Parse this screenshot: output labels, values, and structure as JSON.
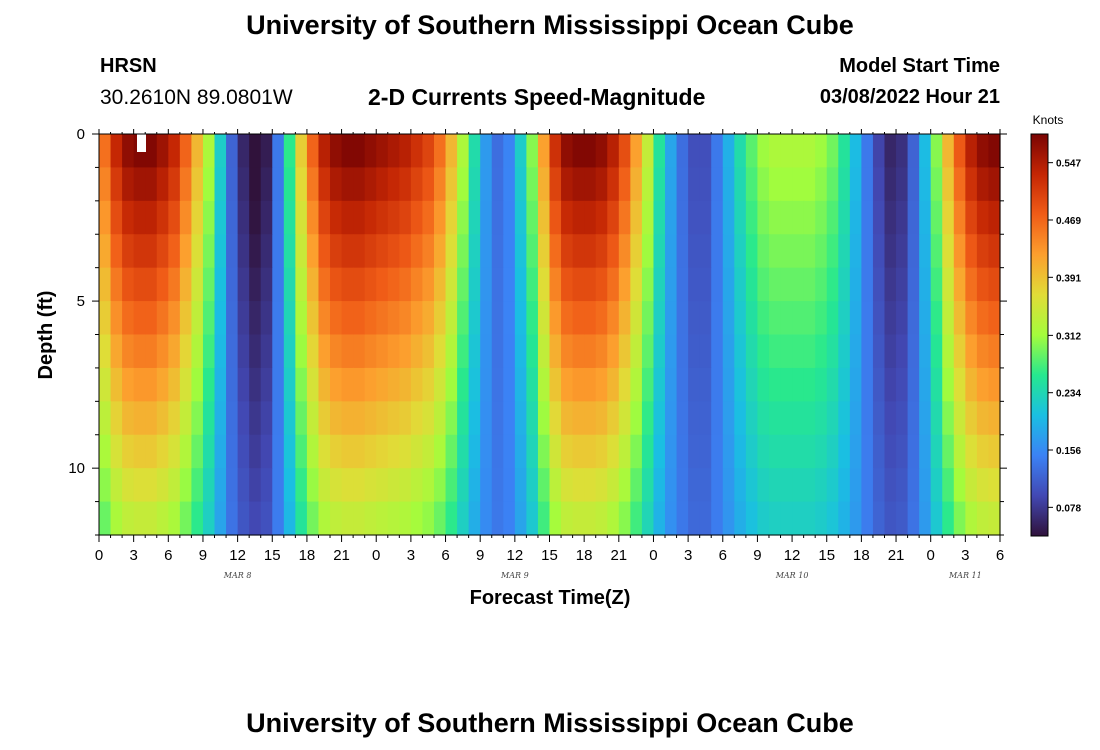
{
  "header": {
    "title": "University of Southern Mississippi Ocean Cube",
    "station": "HRSN",
    "coords": "30.2610N  89.0801W",
    "subtitle": "2-D Currents Speed-Magnitude",
    "start_label": "Model Start Time",
    "start_value": "03/08/2022 Hour 21"
  },
  "footer": {
    "title": "University of Southern Mississippi Ocean Cube"
  },
  "chart_data": {
    "type": "heatmap",
    "title": "2-D Currents Speed-Magnitude",
    "xlabel": "Forecast Time(Z)",
    "ylabel": "Depth (ft)",
    "x_tick_labels": [
      "0",
      "3",
      "6",
      "9",
      "12",
      "15",
      "18",
      "21",
      "0",
      "3",
      "6",
      "9",
      "12",
      "15",
      "18",
      "21",
      "0",
      "3",
      "6",
      "9",
      "12",
      "15",
      "18",
      "21",
      "0",
      "3",
      "6"
    ],
    "x_range_hours": [
      0,
      78
    ],
    "day_labels": [
      {
        "label": "MAR 8",
        "hour": 12
      },
      {
        "label": "MAR 9",
        "hour": 36
      },
      {
        "label": "MAR 10",
        "hour": 60
      },
      {
        "label": "MAR 11",
        "hour": 75
      }
    ],
    "y_range_ft": [
      0,
      12
    ],
    "y_tick_labels": [
      {
        "label": "0",
        "depth": 0
      },
      {
        "label": "5",
        "depth": 5
      },
      {
        "label": "10",
        "depth": 10
      }
    ],
    "colorbar": {
      "unit": "Knots",
      "range": [
        0.039,
        0.586
      ],
      "tick_labels": [
        "0.078",
        "0.156",
        "0.234",
        "0.312",
        "0.391",
        "0.469",
        "0.547"
      ]
    },
    "grid_hours": 78,
    "grid_depth_levels": 12,
    "surface_profile_knots": [
      0.46,
      0.53,
      0.57,
      0.58,
      0.58,
      0.56,
      0.53,
      0.47,
      0.4,
      0.32,
      0.22,
      0.12,
      0.06,
      0.03,
      0.05,
      0.14,
      0.26,
      0.38,
      0.47,
      0.54,
      0.57,
      0.58,
      0.58,
      0.57,
      0.56,
      0.55,
      0.54,
      0.52,
      0.5,
      0.46,
      0.4,
      0.32,
      0.24,
      0.17,
      0.13,
      0.15,
      0.22,
      0.3,
      0.42,
      0.52,
      0.57,
      0.58,
      0.58,
      0.57,
      0.54,
      0.49,
      0.42,
      0.34,
      0.25,
      0.18,
      0.13,
      0.1,
      0.1,
      0.14,
      0.19,
      0.24,
      0.28,
      0.31,
      0.32,
      0.32,
      0.32,
      0.32,
      0.31,
      0.29,
      0.25,
      0.2,
      0.14,
      0.09,
      0.06,
      0.07,
      0.12,
      0.2,
      0.3,
      0.4,
      0.48,
      0.54,
      0.57,
      0.58
    ]
  }
}
